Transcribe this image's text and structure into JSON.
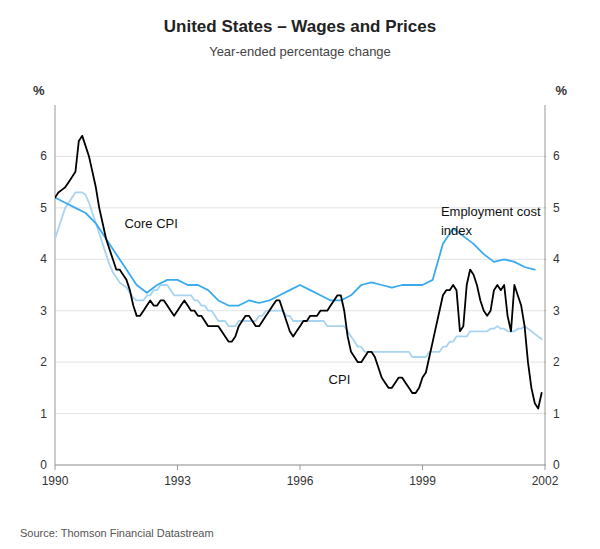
{
  "chart_data": {
    "type": "line",
    "title": "United States – Wages and Prices",
    "subtitle": "Year-ended percentage change",
    "source": "Source: Thomson Financial Datastream",
    "ylabel": "%",
    "y2label": "%",
    "xlim": [
      1990,
      2002
    ],
    "xticks": [
      1990,
      1993,
      1996,
      1999,
      2002
    ],
    "ylim": [
      0,
      7
    ],
    "yticks": [
      0,
      1,
      2,
      3,
      4,
      5,
      6
    ],
    "y2lim": [
      0,
      7
    ],
    "y2ticks": [
      0,
      1,
      2,
      3,
      4,
      5,
      6
    ],
    "grid": true,
    "annotations": [
      {
        "x": 1991.7,
        "y": 4.6,
        "text": "Core CPI"
      },
      {
        "x": 1996.7,
        "y": 1.58,
        "text": "CPI"
      },
      {
        "x": 1999.45,
        "y": 4.85,
        "text": "Employment cost"
      },
      {
        "x": 1999.45,
        "y": 4.47,
        "text": "index"
      }
    ],
    "series": [
      {
        "color": "#a8d4f0",
        "x": [
          1990.0,
          1990.083,
          1990.167,
          1990.25,
          1990.333,
          1990.417,
          1990.5,
          1990.583,
          1990.667,
          1990.75,
          1990.833,
          1990.917,
          1991.0,
          1991.083,
          1991.167,
          1991.25,
          1991.333,
          1991.417,
          1991.5,
          1991.583,
          1991.667,
          1991.75,
          1991.833,
          1991.917,
          1992.0,
          1992.083,
          1992.167,
          1992.25,
          1992.333,
          1992.417,
          1992.5,
          1992.583,
          1992.667,
          1992.75,
          1992.833,
          1992.917,
          1993.0,
          1993.083,
          1993.167,
          1993.25,
          1993.333,
          1993.417,
          1993.5,
          1993.583,
          1993.667,
          1993.75,
          1993.833,
          1993.917,
          1994.0,
          1994.083,
          1994.167,
          1994.25,
          1994.333,
          1994.417,
          1994.5,
          1994.583,
          1994.667,
          1994.75,
          1994.833,
          1994.917,
          1995.0,
          1995.083,
          1995.167,
          1995.25,
          1995.333,
          1995.417,
          1995.5,
          1995.583,
          1995.667,
          1995.75,
          1995.833,
          1995.917,
          1996.0,
          1996.083,
          1996.167,
          1996.25,
          1996.333,
          1996.417,
          1996.5,
          1996.583,
          1996.667,
          1996.75,
          1996.833,
          1996.917,
          1997.0,
          1997.083,
          1997.167,
          1997.25,
          1997.333,
          1997.417,
          1997.5,
          1997.583,
          1997.667,
          1997.75,
          1997.833,
          1997.917,
          1998.0,
          1998.083,
          1998.167,
          1998.25,
          1998.333,
          1998.417,
          1998.5,
          1998.583,
          1998.667,
          1998.75,
          1998.833,
          1998.917,
          1999.0,
          1999.083,
          1999.167,
          1999.25,
          1999.333,
          1999.417,
          1999.5,
          1999.583,
          1999.667,
          1999.75,
          1999.833,
          1999.917,
          2000.0,
          2000.083,
          2000.167,
          2000.25,
          2000.333,
          2000.417,
          2000.5,
          2000.583,
          2000.667,
          2000.75,
          2000.833,
          2000.917,
          2001.0,
          2001.083,
          2001.167,
          2001.25,
          2001.333,
          2001.417,
          2001.5,
          2001.583,
          2001.667,
          2001.75,
          2001.833,
          2001.917
        ],
        "values": [
          4.4,
          4.6,
          4.8,
          5.0,
          5.1,
          5.2,
          5.3,
          5.3,
          5.3,
          5.25,
          5.1,
          4.9,
          4.7,
          4.5,
          4.3,
          4.1,
          3.9,
          3.75,
          3.65,
          3.55,
          3.5,
          3.45,
          3.35,
          3.25,
          3.2,
          3.2,
          3.2,
          3.3,
          3.3,
          3.4,
          3.4,
          3.5,
          3.5,
          3.5,
          3.4,
          3.3,
          3.3,
          3.3,
          3.3,
          3.3,
          3.3,
          3.2,
          3.2,
          3.1,
          3.1,
          3.0,
          3.0,
          2.9,
          2.8,
          2.8,
          2.8,
          2.7,
          2.7,
          2.7,
          2.8,
          2.8,
          2.8,
          2.8,
          2.8,
          2.8,
          2.9,
          2.9,
          3.0,
          3.0,
          3.0,
          3.0,
          3.0,
          3.0,
          2.9,
          2.9,
          2.8,
          2.8,
          2.8,
          2.8,
          2.8,
          2.8,
          2.8,
          2.8,
          2.8,
          2.8,
          2.7,
          2.7,
          2.7,
          2.7,
          2.7,
          2.7,
          2.6,
          2.5,
          2.4,
          2.3,
          2.3,
          2.2,
          2.2,
          2.2,
          2.2,
          2.2,
          2.2,
          2.2,
          2.2,
          2.2,
          2.2,
          2.2,
          2.2,
          2.2,
          2.2,
          2.1,
          2.1,
          2.1,
          2.1,
          2.1,
          2.2,
          2.2,
          2.2,
          2.2,
          2.3,
          2.3,
          2.4,
          2.4,
          2.5,
          2.5,
          2.5,
          2.5,
          2.6,
          2.6,
          2.6,
          2.6,
          2.6,
          2.6,
          2.65,
          2.65,
          2.7,
          2.65,
          2.65,
          2.6,
          2.6,
          2.6,
          2.65,
          2.65,
          2.7,
          2.65,
          2.6,
          2.55,
          2.5,
          2.45
        ]
      },
      {
        "color": "#3aabee",
        "x": [
          1990.0,
          1990.25,
          1990.5,
          1990.75,
          1991.0,
          1991.25,
          1991.5,
          1991.75,
          1992.0,
          1992.25,
          1992.5,
          1992.75,
          1993.0,
          1993.25,
          1993.5,
          1993.75,
          1994.0,
          1994.25,
          1994.5,
          1994.75,
          1995.0,
          1995.25,
          1995.5,
          1995.75,
          1996.0,
          1996.25,
          1996.5,
          1996.75,
          1997.0,
          1997.25,
          1997.5,
          1997.75,
          1998.0,
          1998.25,
          1998.5,
          1998.75,
          1999.0,
          1999.25,
          1999.5,
          1999.75,
          2000.0,
          2000.25,
          2000.5,
          2000.75,
          2001.0,
          2001.25,
          2001.5,
          2001.75
        ],
        "values": [
          5.2,
          5.1,
          5.0,
          4.9,
          4.7,
          4.4,
          4.1,
          3.8,
          3.5,
          3.35,
          3.5,
          3.6,
          3.6,
          3.5,
          3.5,
          3.4,
          3.2,
          3.1,
          3.1,
          3.2,
          3.15,
          3.2,
          3.3,
          3.4,
          3.5,
          3.4,
          3.3,
          3.2,
          3.2,
          3.3,
          3.5,
          3.55,
          3.5,
          3.45,
          3.5,
          3.5,
          3.5,
          3.6,
          4.3,
          4.6,
          4.45,
          4.3,
          4.1,
          3.95,
          4.0,
          3.95,
          3.85,
          3.8
        ]
      },
      {
        "color": "#000000",
        "x": [
          1990.0,
          1990.083,
          1990.167,
          1990.25,
          1990.333,
          1990.417,
          1990.5,
          1990.583,
          1990.667,
          1990.75,
          1990.833,
          1990.917,
          1991.0,
          1991.083,
          1991.167,
          1991.25,
          1991.333,
          1991.417,
          1991.5,
          1991.583,
          1991.667,
          1991.75,
          1991.833,
          1991.917,
          1992.0,
          1992.083,
          1992.167,
          1992.25,
          1992.333,
          1992.417,
          1992.5,
          1992.583,
          1992.667,
          1992.75,
          1992.833,
          1992.917,
          1993.0,
          1993.083,
          1993.167,
          1993.25,
          1993.333,
          1993.417,
          1993.5,
          1993.583,
          1993.667,
          1993.75,
          1993.833,
          1993.917,
          1994.0,
          1994.083,
          1994.167,
          1994.25,
          1994.333,
          1994.417,
          1994.5,
          1994.583,
          1994.667,
          1994.75,
          1994.833,
          1994.917,
          1995.0,
          1995.083,
          1995.167,
          1995.25,
          1995.333,
          1995.417,
          1995.5,
          1995.583,
          1995.667,
          1995.75,
          1995.833,
          1995.917,
          1996.0,
          1996.083,
          1996.167,
          1996.25,
          1996.333,
          1996.417,
          1996.5,
          1996.583,
          1996.667,
          1996.75,
          1996.833,
          1996.917,
          1997.0,
          1997.083,
          1997.167,
          1997.25,
          1997.333,
          1997.417,
          1997.5,
          1997.583,
          1997.667,
          1997.75,
          1997.833,
          1997.917,
          1998.0,
          1998.083,
          1998.167,
          1998.25,
          1998.333,
          1998.417,
          1998.5,
          1998.583,
          1998.667,
          1998.75,
          1998.833,
          1998.917,
          1999.0,
          1999.083,
          1999.167,
          1999.25,
          1999.333,
          1999.417,
          1999.5,
          1999.583,
          1999.667,
          1999.75,
          1999.833,
          1999.917,
          2000.0,
          2000.083,
          2000.167,
          2000.25,
          2000.333,
          2000.417,
          2000.5,
          2000.583,
          2000.667,
          2000.75,
          2000.833,
          2000.917,
          2001.0,
          2001.083,
          2001.167,
          2001.25,
          2001.333,
          2001.417,
          2001.5,
          2001.583,
          2001.667,
          2001.75,
          2001.833,
          2001.917
        ],
        "values": [
          5.2,
          5.3,
          5.35,
          5.4,
          5.5,
          5.6,
          5.7,
          6.3,
          6.4,
          6.2,
          6.0,
          5.7,
          5.4,
          5.0,
          4.7,
          4.4,
          4.2,
          4.0,
          3.8,
          3.8,
          3.7,
          3.6,
          3.4,
          3.1,
          2.9,
          2.9,
          3.0,
          3.1,
          3.2,
          3.1,
          3.1,
          3.2,
          3.2,
          3.1,
          3.0,
          2.9,
          3.0,
          3.1,
          3.2,
          3.1,
          3.0,
          3.0,
          2.9,
          2.9,
          2.8,
          2.7,
          2.7,
          2.7,
          2.7,
          2.6,
          2.5,
          2.4,
          2.4,
          2.5,
          2.7,
          2.8,
          2.9,
          2.9,
          2.8,
          2.7,
          2.7,
          2.8,
          2.9,
          3.0,
          3.1,
          3.2,
          3.2,
          3.0,
          2.8,
          2.6,
          2.5,
          2.6,
          2.7,
          2.8,
          2.8,
          2.9,
          2.9,
          2.9,
          3.0,
          3.0,
          3.0,
          3.1,
          3.2,
          3.3,
          3.3,
          3.0,
          2.5,
          2.2,
          2.1,
          2.0,
          2.0,
          2.1,
          2.2,
          2.2,
          2.1,
          1.9,
          1.7,
          1.6,
          1.5,
          1.5,
          1.6,
          1.7,
          1.7,
          1.6,
          1.5,
          1.4,
          1.4,
          1.5,
          1.7,
          1.8,
          2.1,
          2.4,
          2.7,
          3.0,
          3.3,
          3.4,
          3.4,
          3.5,
          3.4,
          2.6,
          2.7,
          3.5,
          3.8,
          3.7,
          3.5,
          3.2,
          3.0,
          2.9,
          3.0,
          3.4,
          3.5,
          3.4,
          3.5,
          2.9,
          2.6,
          3.5,
          3.3,
          3.1,
          2.7,
          2.0,
          1.5,
          1.2,
          1.1,
          1.4
        ]
      }
    ]
  }
}
